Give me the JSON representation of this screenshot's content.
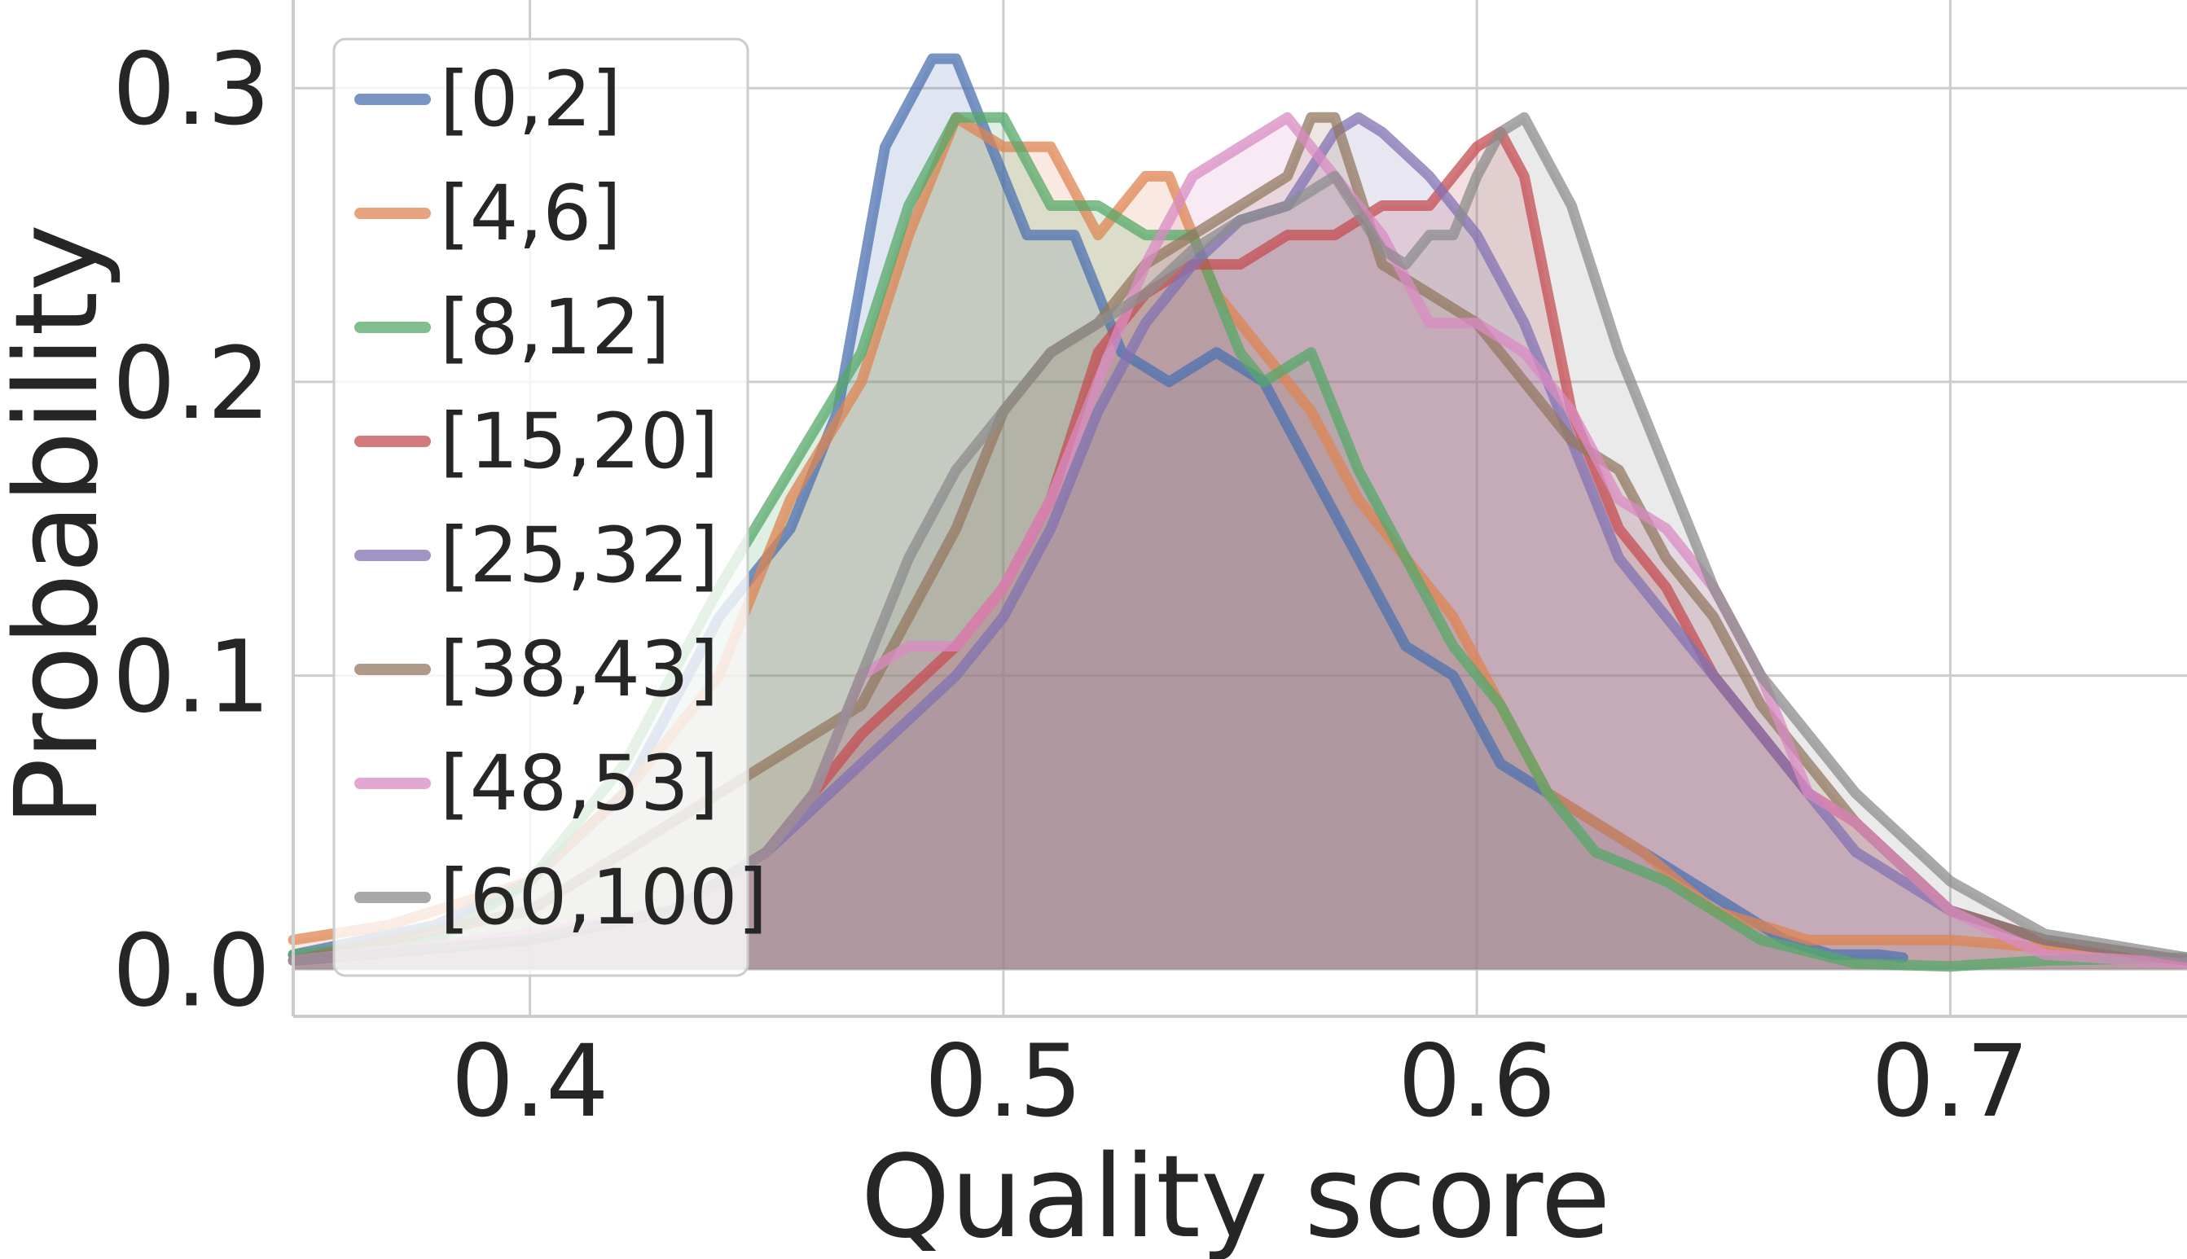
{
  "chart_data": {
    "type": "area",
    "xlabel": "Quality score",
    "ylabel": "Probability",
    "xlim": [
      0.35,
      0.75
    ],
    "ylim": [
      -0.016,
      0.33
    ],
    "xticks": [
      0.4,
      0.5,
      0.6,
      0.7
    ],
    "xtick_labels": [
      "0.4",
      "0.5",
      "0.6",
      "0.7"
    ],
    "yticks": [
      0.0,
      0.1,
      0.2,
      0.3
    ],
    "ytick_labels": [
      "0.0",
      "0.1",
      "0.2",
      "0.3"
    ],
    "grid": true,
    "legend_position": "upper-left",
    "series": [
      {
        "name": "[0,2]",
        "color": "#4c72b0",
        "x": [
          0.35,
          0.38,
          0.4,
          0.42,
          0.44,
          0.455,
          0.465,
          0.475,
          0.485,
          0.49,
          0.5,
          0.505,
          0.515,
          0.525,
          0.535,
          0.545,
          0.555,
          0.565,
          0.575,
          0.585,
          0.595,
          0.605,
          0.615,
          0.625,
          0.635,
          0.645,
          0.655,
          0.665,
          0.675,
          0.685,
          0.69
        ],
        "y": [
          0.005,
          0.015,
          0.03,
          0.06,
          0.12,
          0.15,
          0.19,
          0.28,
          0.31,
          0.31,
          0.27,
          0.25,
          0.25,
          0.21,
          0.2,
          0.21,
          0.2,
          0.17,
          0.14,
          0.11,
          0.1,
          0.07,
          0.06,
          0.05,
          0.04,
          0.03,
          0.02,
          0.01,
          0.005,
          0.005,
          0.004
        ]
      },
      {
        "name": "[4,6]",
        "color": "#dd8452",
        "x": [
          0.35,
          0.37,
          0.4,
          0.42,
          0.44,
          0.455,
          0.47,
          0.48,
          0.49,
          0.5,
          0.51,
          0.52,
          0.53,
          0.535,
          0.545,
          0.555,
          0.565,
          0.575,
          0.585,
          0.595,
          0.605,
          0.615,
          0.625,
          0.635,
          0.65,
          0.67,
          0.7,
          0.73,
          0.75
        ],
        "y": [
          0.01,
          0.015,
          0.03,
          0.06,
          0.1,
          0.16,
          0.2,
          0.25,
          0.29,
          0.28,
          0.28,
          0.25,
          0.27,
          0.27,
          0.23,
          0.21,
          0.19,
          0.16,
          0.14,
          0.12,
          0.09,
          0.06,
          0.05,
          0.04,
          0.02,
          0.01,
          0.01,
          0.006,
          0.003
        ]
      },
      {
        "name": "[8,12]",
        "color": "#55a868",
        "x": [
          0.35,
          0.38,
          0.4,
          0.42,
          0.44,
          0.455,
          0.47,
          0.48,
          0.49,
          0.5,
          0.51,
          0.52,
          0.53,
          0.54,
          0.55,
          0.555,
          0.565,
          0.575,
          0.585,
          0.595,
          0.605,
          0.615,
          0.625,
          0.64,
          0.66,
          0.68,
          0.7,
          0.72,
          0.75
        ],
        "y": [
          0.005,
          0.01,
          0.03,
          0.07,
          0.13,
          0.17,
          0.21,
          0.26,
          0.29,
          0.29,
          0.26,
          0.26,
          0.25,
          0.25,
          0.21,
          0.2,
          0.21,
          0.17,
          0.14,
          0.11,
          0.09,
          0.06,
          0.04,
          0.03,
          0.01,
          0.002,
          0.001,
          0.003,
          0.004
        ]
      },
      {
        "name": "[15,20]",
        "color": "#c44e52",
        "x": [
          0.35,
          0.4,
          0.43,
          0.45,
          0.47,
          0.49,
          0.5,
          0.51,
          0.52,
          0.53,
          0.54,
          0.55,
          0.56,
          0.57,
          0.58,
          0.59,
          0.6,
          0.605,
          0.61,
          0.62,
          0.63,
          0.64,
          0.65,
          0.66,
          0.67,
          0.68,
          0.7,
          0.72,
          0.75
        ],
        "y": [
          0.003,
          0.01,
          0.02,
          0.04,
          0.08,
          0.11,
          0.13,
          0.16,
          0.21,
          0.23,
          0.24,
          0.24,
          0.25,
          0.25,
          0.26,
          0.26,
          0.28,
          0.285,
          0.27,
          0.19,
          0.15,
          0.13,
          0.1,
          0.08,
          0.06,
          0.05,
          0.02,
          0.01,
          0.003
        ]
      },
      {
        "name": "[25,32]",
        "color": "#8172b3",
        "x": [
          0.35,
          0.4,
          0.43,
          0.45,
          0.47,
          0.49,
          0.5,
          0.51,
          0.52,
          0.53,
          0.54,
          0.55,
          0.56,
          0.57,
          0.575,
          0.58,
          0.59,
          0.6,
          0.61,
          0.62,
          0.63,
          0.64,
          0.65,
          0.66,
          0.67,
          0.68,
          0.7,
          0.72,
          0.75
        ],
        "y": [
          0.003,
          0.01,
          0.02,
          0.04,
          0.07,
          0.1,
          0.12,
          0.15,
          0.19,
          0.22,
          0.24,
          0.255,
          0.26,
          0.285,
          0.29,
          0.285,
          0.27,
          0.25,
          0.22,
          0.18,
          0.14,
          0.12,
          0.1,
          0.08,
          0.06,
          0.04,
          0.02,
          0.01,
          0.003
        ]
      },
      {
        "name": "[38,43]",
        "color": "#937860",
        "x": [
          0.35,
          0.4,
          0.43,
          0.45,
          0.46,
          0.47,
          0.48,
          0.49,
          0.5,
          0.51,
          0.52,
          0.53,
          0.54,
          0.55,
          0.56,
          0.565,
          0.57,
          0.58,
          0.59,
          0.6,
          0.61,
          0.62,
          0.63,
          0.64,
          0.65,
          0.66,
          0.68,
          0.7,
          0.72,
          0.75
        ],
        "y": [
          0.003,
          0.02,
          0.05,
          0.07,
          0.08,
          0.09,
          0.12,
          0.15,
          0.19,
          0.21,
          0.22,
          0.24,
          0.25,
          0.26,
          0.27,
          0.29,
          0.29,
          0.24,
          0.23,
          0.22,
          0.2,
          0.18,
          0.17,
          0.14,
          0.12,
          0.09,
          0.05,
          0.02,
          0.01,
          0.003
        ]
      },
      {
        "name": "[48,53]",
        "color": "#da8bc3",
        "x": [
          0.35,
          0.38,
          0.4,
          0.43,
          0.45,
          0.46,
          0.47,
          0.48,
          0.49,
          0.5,
          0.51,
          0.52,
          0.53,
          0.54,
          0.55,
          0.56,
          0.57,
          0.58,
          0.59,
          0.6,
          0.61,
          0.62,
          0.63,
          0.64,
          0.65,
          0.66,
          0.67,
          0.68,
          0.7,
          0.72,
          0.75
        ],
        "y": [
          0.003,
          0.008,
          0.012,
          0.02,
          0.04,
          0.06,
          0.1,
          0.11,
          0.11,
          0.13,
          0.16,
          0.2,
          0.24,
          0.27,
          0.28,
          0.29,
          0.27,
          0.25,
          0.22,
          0.22,
          0.21,
          0.19,
          0.16,
          0.15,
          0.13,
          0.1,
          0.06,
          0.05,
          0.02,
          0.005,
          0.002
        ]
      },
      {
        "name": "[60,100]",
        "color": "#8c8c8c",
        "x": [
          0.35,
          0.4,
          0.43,
          0.45,
          0.46,
          0.47,
          0.48,
          0.49,
          0.5,
          0.51,
          0.52,
          0.53,
          0.54,
          0.55,
          0.56,
          0.57,
          0.58,
          0.585,
          0.59,
          0.595,
          0.6,
          0.605,
          0.61,
          0.62,
          0.63,
          0.64,
          0.65,
          0.66,
          0.68,
          0.7,
          0.72,
          0.75
        ],
        "y": [
          0.003,
          0.01,
          0.02,
          0.04,
          0.06,
          0.1,
          0.14,
          0.17,
          0.19,
          0.21,
          0.22,
          0.23,
          0.245,
          0.255,
          0.26,
          0.27,
          0.245,
          0.24,
          0.25,
          0.25,
          0.27,
          0.285,
          0.29,
          0.26,
          0.21,
          0.17,
          0.13,
          0.1,
          0.06,
          0.03,
          0.012,
          0.004
        ]
      }
    ]
  }
}
